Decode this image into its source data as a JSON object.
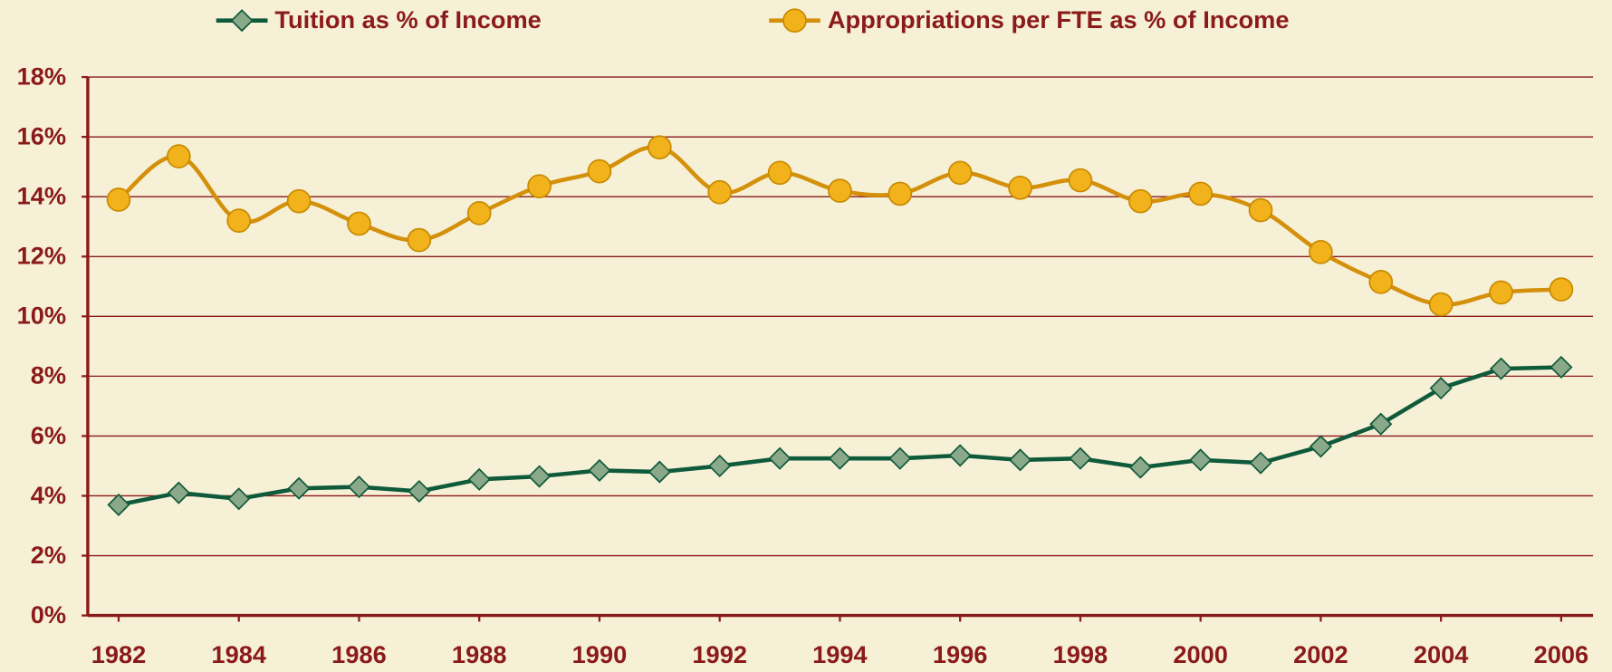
{
  "chart_data": {
    "type": "line",
    "x": [
      1982,
      1983,
      1984,
      1985,
      1986,
      1987,
      1988,
      1989,
      1990,
      1991,
      1992,
      1993,
      1994,
      1995,
      1996,
      1997,
      1998,
      1999,
      2000,
      2001,
      2002,
      2003,
      2004,
      2005,
      2006
    ],
    "series": [
      {
        "name": "Tuition as % of Income",
        "color": "#0e5a3a",
        "marker": "diamond",
        "marker_color": "#8aa88a",
        "values": [
          3.7,
          4.1,
          3.9,
          4.25,
          4.3,
          4.15,
          4.55,
          4.65,
          4.85,
          4.8,
          5.0,
          5.25,
          5.25,
          5.25,
          5.35,
          5.2,
          5.25,
          4.95,
          5.2,
          5.1,
          5.65,
          6.4,
          7.6,
          8.25,
          8.3
        ]
      },
      {
        "name": "Appropriations per FTE as % of Income",
        "color": "#d4900a",
        "marker": "circle",
        "marker_color": "#f2b21c",
        "values": [
          13.9,
          15.35,
          13.2,
          13.85,
          13.1,
          12.55,
          13.45,
          14.35,
          14.85,
          15.65,
          14.15,
          14.8,
          14.2,
          14.1,
          14.8,
          14.3,
          14.55,
          13.85,
          14.1,
          13.55,
          12.15,
          11.15,
          10.4,
          10.8,
          10.9
        ]
      }
    ],
    "xlim": [
      1982,
      2006
    ],
    "xticks": [
      1982,
      1984,
      1986,
      1988,
      1990,
      1992,
      1994,
      1996,
      1998,
      2000,
      2002,
      2004,
      2006
    ],
    "ylim": [
      0,
      18
    ],
    "yticks": [
      {
        "value": 0,
        "label": "0%"
      },
      {
        "value": 2,
        "label": "2%"
      },
      {
        "value": 4,
        "label": "4%"
      },
      {
        "value": 6,
        "label": "6%"
      },
      {
        "value": 8,
        "label": "8%"
      },
      {
        "value": 10,
        "label": "10%"
      },
      {
        "value": 12,
        "label": "12%"
      },
      {
        "value": 14,
        "label": "14%"
      },
      {
        "value": 16,
        "label": "16%"
      },
      {
        "value": 18,
        "label": "18%"
      }
    ],
    "grid": true,
    "legend": "top"
  }
}
